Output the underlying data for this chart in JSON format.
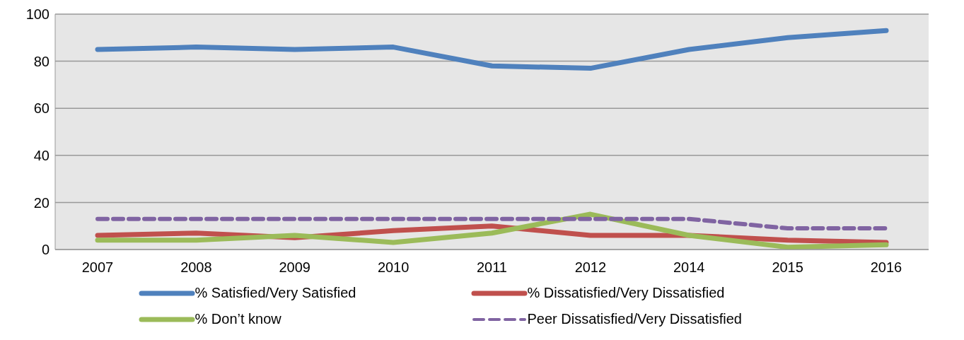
{
  "chart_data": {
    "type": "line",
    "categories": [
      "2007",
      "2008",
      "2009",
      "2010",
      "2011",
      "2012",
      "2014",
      "2015",
      "2016"
    ],
    "series": [
      {
        "name": "% Satisfied/Very Satisfied",
        "color": "#4f81bd",
        "values": [
          85,
          86,
          85,
          86,
          78,
          77,
          85,
          90,
          93
        ]
      },
      {
        "name": "% Dissatisfied/Very Dissatisfied",
        "color": "#c0504d",
        "values": [
          6,
          7,
          5,
          8,
          10,
          6,
          6,
          4,
          3
        ]
      },
      {
        "name": "% Don’t know",
        "color": "#9bbb59",
        "values": [
          4,
          4,
          6,
          3,
          7,
          15,
          6,
          1,
          2
        ]
      },
      {
        "name": "Peer Dissatisfied/Very Dissatisfied",
        "color": "#8064a2",
        "values": [
          13,
          13,
          13,
          13,
          13,
          13,
          13,
          9,
          9
        ],
        "line_style": "dashed"
      }
    ],
    "ylim": [
      0,
      100
    ],
    "yticks": [
      0,
      20,
      40,
      60,
      80,
      100
    ],
    "grid": "y",
    "legend": "bottom",
    "marker": "none",
    "line_style": "solid"
  }
}
